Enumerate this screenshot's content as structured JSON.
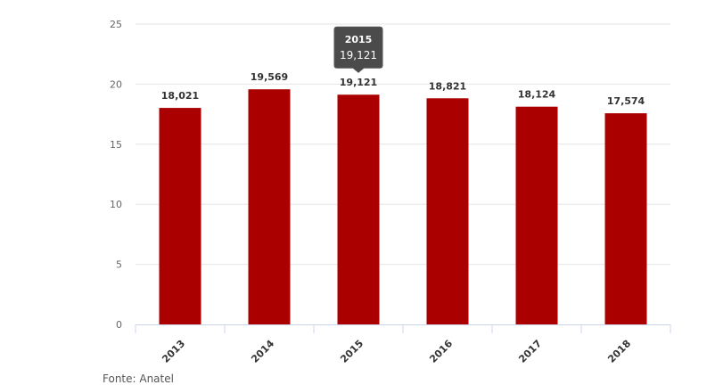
{
  "chart_data": {
    "type": "bar",
    "title": "",
    "xlabel": "",
    "ylabel": "",
    "categories": [
      "2013",
      "2014",
      "2015",
      "2016",
      "2017",
      "2018"
    ],
    "values": [
      18.021,
      19.569,
      19.121,
      18.821,
      18.124,
      17.574
    ],
    "data_labels": [
      "18,021",
      "19,569",
      "19,121",
      "18,821",
      "18,124",
      "17,574"
    ],
    "ylim": [
      0,
      25
    ],
    "yticks": [
      0,
      5,
      10,
      15,
      20,
      25
    ],
    "grid": true,
    "bar_color": "#aa0000",
    "tooltip": {
      "category": "2015",
      "value": "19,121"
    }
  },
  "source": "Fonte: Anatel"
}
